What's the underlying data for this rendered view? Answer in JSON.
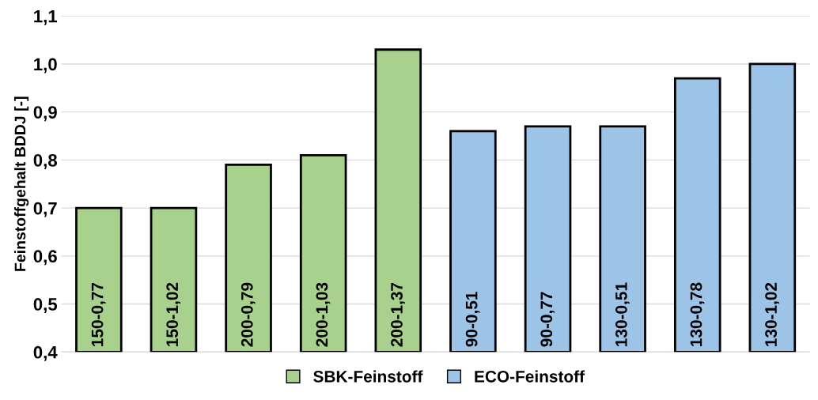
{
  "chart_data": {
    "type": "bar",
    "ylabel": "Feinstoffgehalt BDDJ [-]",
    "categories": [
      "150-0,77",
      "150-1,02",
      "200-0,79",
      "200-1,03",
      "200-1,37",
      "90-0,51",
      "90-0,77",
      "130-0,51",
      "130-0,78",
      "130-1,02"
    ],
    "series": [
      {
        "name": "SBK-Feinstoff",
        "color": "#a9d18e",
        "values": [
          0.7,
          0.7,
          0.79,
          0.81,
          1.03,
          null,
          null,
          null,
          null,
          null
        ]
      },
      {
        "name": "ECO-Feinstoff",
        "color": "#9dc3e6",
        "values": [
          null,
          null,
          null,
          null,
          null,
          0.86,
          0.87,
          0.87,
          0.97,
          1.0
        ]
      }
    ],
    "ylim": [
      0.4,
      1.1
    ],
    "yticks": [
      {
        "value": 0.4,
        "label": "0,4"
      },
      {
        "value": 0.5,
        "label": "0,5"
      },
      {
        "value": 0.6,
        "label": "0,6"
      },
      {
        "value": 0.7,
        "label": "0,7"
      },
      {
        "value": 0.8,
        "label": "0,8"
      },
      {
        "value": 0.9,
        "label": "0,9"
      },
      {
        "value": 1.0,
        "label": "1,0"
      },
      {
        "value": 1.1,
        "label": "1,1"
      }
    ],
    "grid": "y",
    "legend": "bottom",
    "tick_labels": "y"
  }
}
